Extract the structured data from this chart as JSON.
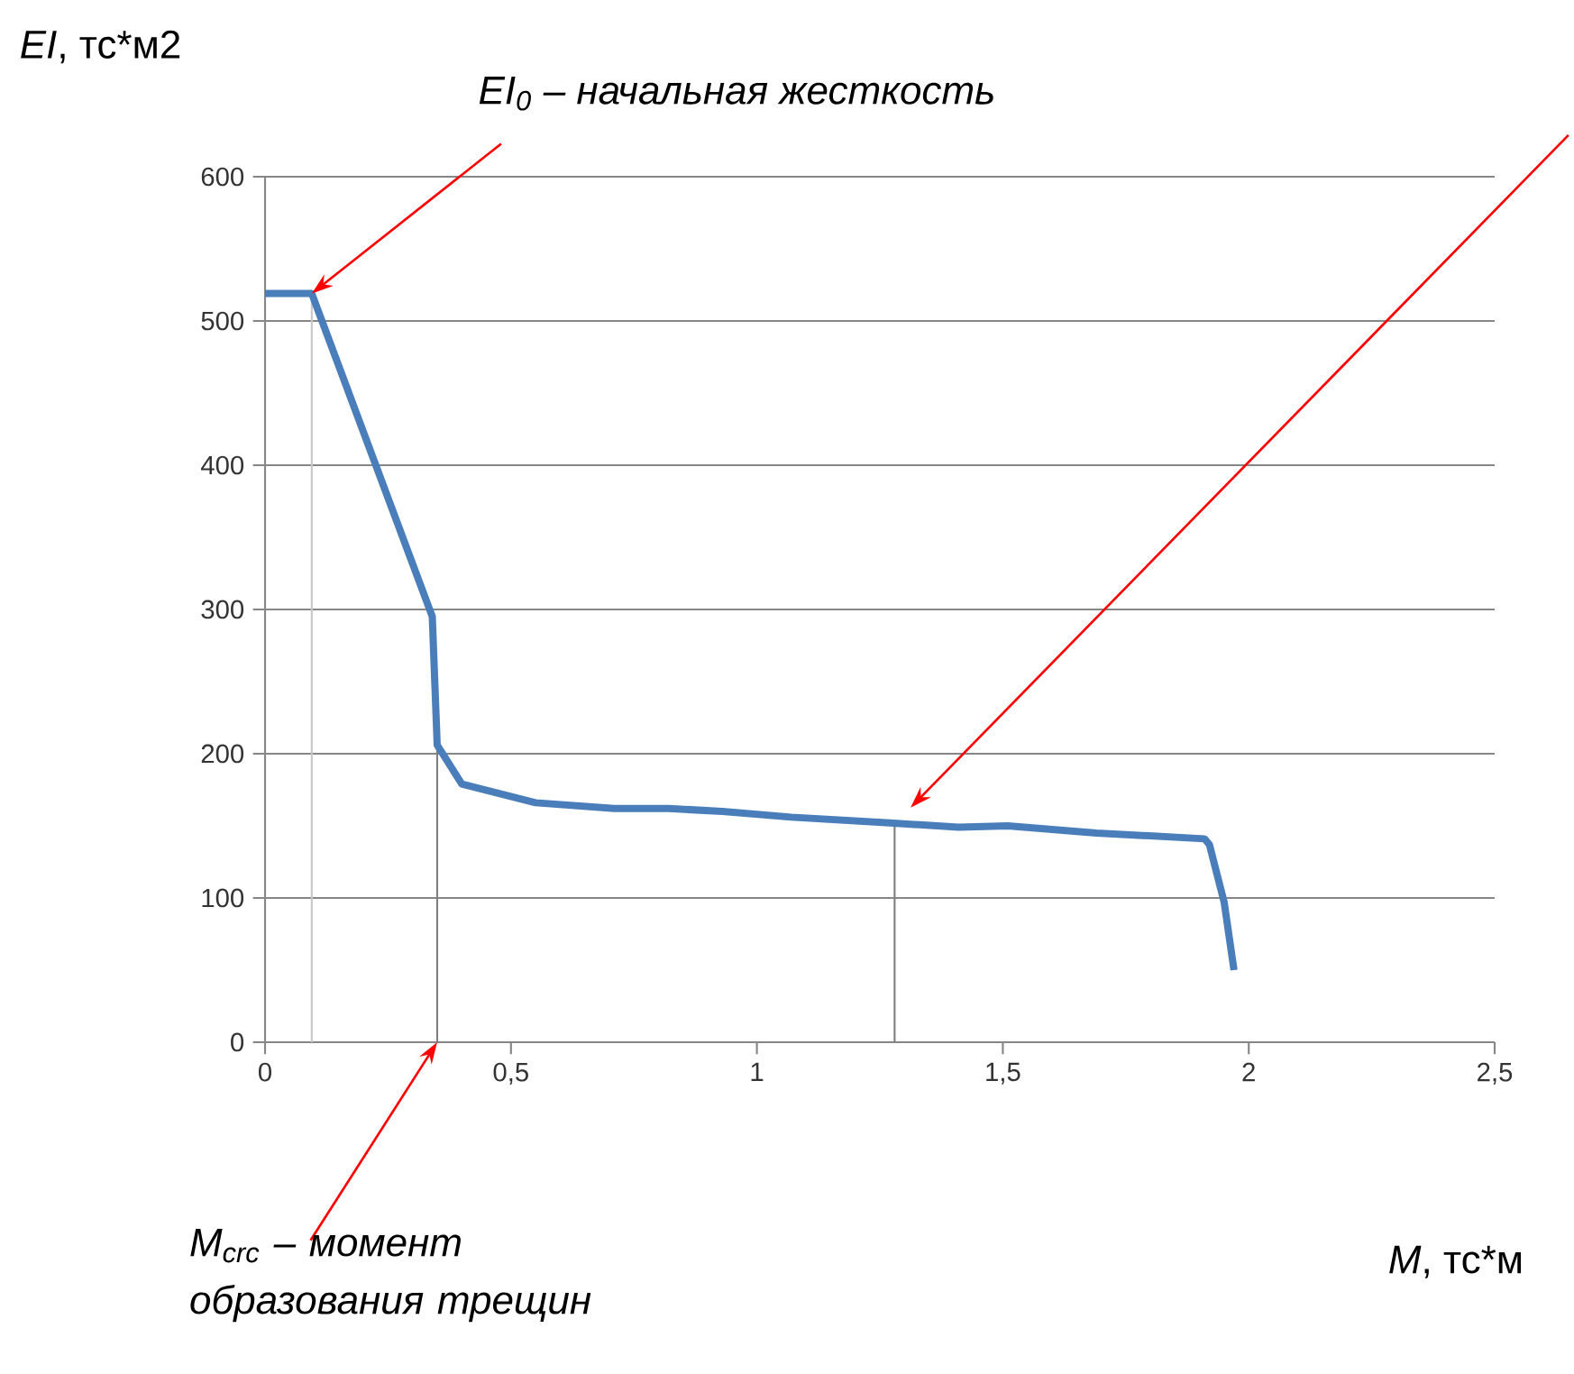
{
  "chart_data": {
    "type": "line",
    "xlabel": "*M*, тс*м",
    "ylabel": "*EI*, тс*м2",
    "xlim": [
      0,
      2.5
    ],
    "ylim": [
      0,
      600
    ],
    "xticks": [
      0,
      {
        "value": 0.5,
        "label": "0,5"
      },
      1,
      {
        "value": 1.5,
        "label": "1,5"
      },
      2,
      {
        "value": 2.5,
        "label": "2,5"
      }
    ],
    "yticks": [
      0,
      100,
      200,
      300,
      400,
      500,
      600
    ],
    "grid": "y",
    "marker": "none",
    "line_style": "solid",
    "series": [
      {
        "color": "#c8c8c8",
        "x": [
          0.095,
          0.095
        ],
        "values": [
          0,
          519
        ]
      },
      {
        "color": "#7f7f7f",
        "x": [
          0.35,
          0.35
        ],
        "values": [
          0,
          206
        ]
      },
      {
        "color": "#7f7f7f",
        "x": [
          1.28,
          1.28
        ],
        "values": [
          0,
          152
        ]
      },
      {
        "color": "#4a7ebb",
        "x": [
          0,
          0.095,
          0.34,
          0.35,
          0.4,
          0.55,
          0.71,
          0.82,
          0.93,
          1.07,
          1.27,
          1.41,
          1.51,
          1.69,
          1.91,
          1.92,
          1.95,
          1.97
        ],
        "values": [
          519,
          519,
          295,
          206,
          179,
          166,
          162,
          162,
          160,
          156,
          152,
          149,
          150,
          145,
          141,
          137,
          97,
          50
        ]
      }
    ],
    "annotations": [
      {
        "text": "EI$_{0}$ – начальная жесткость",
        "x": 0.095,
        "y": 519
      },
      {
        "text": "M$_{crc}$ – момент образования трещин",
        "x": 0.35,
        "y": 0
      }
    ]
  }
}
